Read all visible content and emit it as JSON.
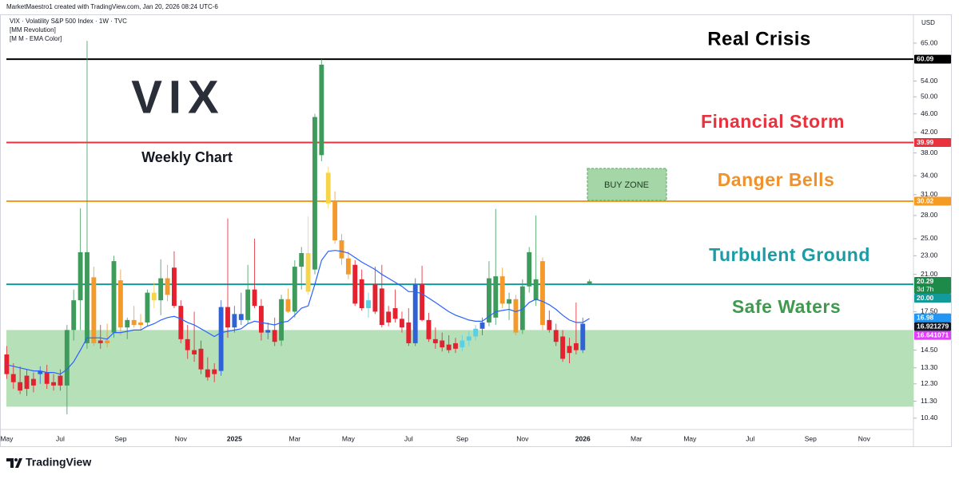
{
  "chart_data": {
    "type": "candlestick",
    "attribution": "MarketMaestro1 created with TradingView.com, Jan 20, 2026 08:24 UTC-6",
    "title": "VIX · Volatility S&P 500 Index · 1W · TVC",
    "indicators": [
      "[MM Revolution]",
      "[M M - EMA Color]"
    ],
    "currency": "USD",
    "watermark": "VIX",
    "subtitle": "Weekly Chart",
    "buy_zone": "BUY ZONE",
    "brand": "TradingView",
    "log_scale": true,
    "grid": false,
    "ylim": [
      9.84,
      74.8
    ],
    "yticks": [
      {
        "value": 65,
        "label": "65.00"
      },
      {
        "value": 54,
        "label": "54.00"
      },
      {
        "value": 50,
        "label": "50.00"
      },
      {
        "value": 46,
        "label": "46.00"
      },
      {
        "value": 42,
        "label": "42.00"
      },
      {
        "value": 38,
        "label": "38.00"
      },
      {
        "value": 34,
        "label": "34.00"
      },
      {
        "value": 31,
        "label": "31.00"
      },
      {
        "value": 28,
        "label": "28.00"
      },
      {
        "value": 25,
        "label": "25.00"
      },
      {
        "value": 23,
        "label": "23.00"
      },
      {
        "value": 21,
        "label": "21.00"
      },
      {
        "value": 17.5,
        "label": "17.50"
      },
      {
        "value": 14.5,
        "label": "14.50"
      },
      {
        "value": 13.3,
        "label": "13.30"
      },
      {
        "value": 12.3,
        "label": "12.30"
      },
      {
        "value": 11.3,
        "label": "11.30"
      },
      {
        "value": 10.4,
        "label": "10.40"
      }
    ],
    "xlim": [
      -1,
      135
    ],
    "xticks": [
      {
        "value": 0,
        "label": "May"
      },
      {
        "value": 8,
        "label": "Jul"
      },
      {
        "value": 17,
        "label": "Sep"
      },
      {
        "value": 26,
        "label": "Nov"
      },
      {
        "value": 34,
        "label": "2025"
      },
      {
        "value": 43,
        "label": "Mar"
      },
      {
        "value": 51,
        "label": "May"
      },
      {
        "value": 60,
        "label": "Jul"
      },
      {
        "value": 68,
        "label": "Sep"
      },
      {
        "value": 77,
        "label": "Nov"
      },
      {
        "value": 86,
        "label": "2026"
      },
      {
        "value": 94,
        "label": "Mar"
      },
      {
        "value": 102,
        "label": "May"
      },
      {
        "value": 111,
        "label": "Jul"
      },
      {
        "value": 120,
        "label": "Sep"
      },
      {
        "value": 128,
        "label": "Nov"
      }
    ],
    "candles": [
      [
        14.2,
        14.8,
        12.6,
        12.9
      ],
      [
        12.9,
        13.6,
        12.0,
        12.4
      ],
      [
        12.4,
        13.4,
        11.7,
        11.9
      ],
      [
        12.8,
        13.2,
        11.6,
        12.0
      ],
      [
        12.6,
        13.0,
        11.8,
        12.2
      ],
      [
        12.9,
        13.4,
        12.3,
        13.1
      ],
      [
        13.0,
        13.5,
        12.0,
        12.3
      ],
      [
        12.4,
        12.9,
        11.9,
        12.2
      ],
      [
        12.8,
        13.2,
        11.9,
        12.2
      ],
      [
        12.2,
        16.4,
        10.6,
        16.0
      ],
      [
        16.0,
        19.5,
        15.2,
        18.5
      ],
      [
        18.5,
        29.0,
        16.0,
        23.4
      ],
      [
        15.0,
        65.7,
        14.6,
        23.4
      ],
      [
        20.7,
        21.8,
        14.8,
        15.0
      ],
      [
        15.0,
        16.4,
        14.6,
        15.2
      ],
      [
        15.2,
        16.5,
        14.7,
        15.0
      ],
      [
        15.8,
        23.0,
        15.4,
        22.4
      ],
      [
        20.4,
        21.5,
        15.6,
        16.2
      ],
      [
        16.2,
        17.0,
        15.3,
        16.8
      ],
      [
        16.8,
        18.0,
        16.2,
        16.4
      ],
      [
        16.4,
        17.3,
        16.0,
        16.6
      ],
      [
        16.6,
        19.5,
        16.3,
        19.2
      ],
      [
        19.2,
        20.2,
        17.8,
        18.5
      ],
      [
        18.5,
        22.6,
        17.2,
        20.6
      ],
      [
        20.6,
        22.0,
        18.4,
        19.0
      ],
      [
        21.7,
        23.5,
        17.8,
        18.0
      ],
      [
        18.0,
        18.5,
        15.0,
        15.3
      ],
      [
        15.3,
        16.4,
        13.9,
        14.5
      ],
      [
        14.5,
        17.5,
        13.7,
        14.2
      ],
      [
        14.6,
        15.2,
        12.9,
        13.2
      ],
      [
        13.2,
        14.0,
        12.5,
        12.7
      ],
      [
        13.2,
        13.6,
        12.4,
        12.9
      ],
      [
        13.1,
        18.5,
        12.8,
        17.9
      ],
      [
        17.9,
        27.6,
        15.4,
        16.2
      ],
      [
        16.2,
        18.0,
        15.8,
        17.3
      ],
      [
        17.3,
        19.2,
        16.4,
        16.8
      ],
      [
        16.8,
        22.0,
        16.5,
        19.5
      ],
      [
        19.5,
        25.0,
        17.8,
        18.0
      ],
      [
        18.0,
        18.6,
        15.2,
        15.8
      ],
      [
        15.8,
        16.6,
        15.3,
        16.0
      ],
      [
        16.0,
        17.0,
        14.8,
        15.1
      ],
      [
        15.2,
        19.0,
        14.8,
        18.6
      ],
      [
        18.6,
        19.6,
        17.4,
        17.5
      ],
      [
        17.5,
        22.5,
        17.0,
        21.8
      ],
      [
        21.8,
        24.0,
        19.5,
        23.3
      ],
      [
        23.3,
        27.9,
        19.0,
        19.3
      ],
      [
        21.5,
        46.0,
        21.0,
        45.3
      ],
      [
        37.6,
        60.1,
        36.5,
        58.5
      ],
      [
        34.5,
        35.5,
        29.0,
        29.7
      ],
      [
        30.0,
        31.5,
        24.4,
        24.8
      ],
      [
        24.8,
        25.6,
        22.0,
        22.7
      ],
      [
        22.7,
        23.5,
        20.5,
        21.0
      ],
      [
        22.0,
        22.5,
        18.0,
        18.2
      ],
      [
        20.5,
        21.5,
        17.6,
        17.8
      ],
      [
        17.8,
        19.2,
        17.0,
        18.5
      ],
      [
        20.0,
        21.8,
        17.3,
        17.5
      ],
      [
        19.6,
        22.0,
        16.2,
        16.4
      ],
      [
        17.5,
        18.0,
        16.3,
        16.6
      ],
      [
        17.8,
        19.5,
        16.6,
        16.9
      ],
      [
        16.9,
        17.5,
        15.8,
        16.2
      ],
      [
        16.6,
        17.8,
        14.8,
        15.0
      ],
      [
        15.0,
        20.6,
        14.8,
        20.0
      ],
      [
        20.0,
        21.9,
        16.7,
        16.8
      ],
      [
        16.8,
        17.4,
        15.1,
        15.3
      ],
      [
        15.3,
        16.2,
        14.6,
        15.0
      ],
      [
        15.2,
        15.8,
        14.4,
        14.7
      ],
      [
        14.9,
        15.6,
        14.3,
        14.5
      ],
      [
        15.0,
        15.4,
        14.3,
        14.6
      ],
      [
        14.7,
        15.6,
        14.4,
        15.2
      ],
      [
        15.2,
        15.9,
        14.8,
        15.5
      ],
      [
        15.5,
        16.4,
        15.2,
        16.1
      ],
      [
        16.1,
        17.0,
        15.6,
        16.6
      ],
      [
        16.6,
        22.4,
        16.3,
        20.6
      ],
      [
        17.0,
        28.9,
        16.4,
        20.8
      ],
      [
        20.8,
        21.7,
        17.8,
        18.2
      ],
      [
        18.2,
        19.2,
        16.8,
        18.6
      ],
      [
        18.6,
        19.0,
        15.6,
        15.8
      ],
      [
        16.0,
        20.5,
        15.7,
        19.8
      ],
      [
        19.8,
        24.0,
        19.2,
        23.4
      ],
      [
        18.5,
        28.0,
        18.0,
        20.5
      ],
      [
        22.4,
        22.8,
        16.0,
        16.4
      ],
      [
        16.8,
        17.6,
        15.8,
        16.0
      ],
      [
        16.0,
        16.5,
        14.8,
        15.1
      ],
      [
        15.5,
        16.0,
        13.7,
        13.9
      ],
      [
        14.8,
        15.4,
        13.6,
        14.3
      ],
      [
        15.0,
        18.3,
        14.2,
        14.5
      ],
      [
        14.5,
        17.0,
        14.3,
        16.5
      ],
      [
        20.0,
        20.5,
        19.9,
        20.29
      ]
    ],
    "candle_colors": [
      "#e3212f",
      "#e3212f",
      "#e3212f",
      "#e3212f",
      "#e3212f",
      "#2f62d8",
      "#e3212f",
      "#e3212f",
      "#e3212f",
      "#3e9b5b",
      "#3e9b5b",
      "#3e9b5b",
      "#3e9b5b",
      "#f39a2b",
      "#e3212f",
      "#f39a2b",
      "#3e9b5b",
      "#f39a2b",
      "#3e9b5b",
      "#f39a2b",
      "#f39a2b",
      "#3e9b5b",
      "#f7d54b",
      "#3e9b5b",
      "#f39a2b",
      "#e3212f",
      "#e3212f",
      "#e3212f",
      "#e3212f",
      "#e3212f",
      "#e3212f",
      "#e3212f",
      "#2f62d8",
      "#e3212f",
      "#2f62d8",
      "#2f62d8",
      "#3e9b5b",
      "#e3212f",
      "#e3212f",
      "#2f62d8",
      "#e3212f",
      "#3e9b5b",
      "#f39a2b",
      "#3e9b5b",
      "#3e9b5b",
      "#f7d54b",
      "#3e9b5b",
      "#3e9b5b",
      "#f7d54b",
      "#f39a2b",
      "#f39a2b",
      "#f39a2b",
      "#e3212f",
      "#e3212f",
      "#5bd0e2",
      "#e3212f",
      "#e3212f",
      "#e3212f",
      "#e3212f",
      "#e3212f",
      "#e3212f",
      "#2f62d8",
      "#e3212f",
      "#e3212f",
      "#e3212f",
      "#e3212f",
      "#e3212f",
      "#e3212f",
      "#5bd0e2",
      "#5bd0e2",
      "#5bd0e2",
      "#2f62d8",
      "#3e9b5b",
      "#3e9b5b",
      "#f39a2b",
      "#3e9b5b",
      "#f39a2b",
      "#3e9b5b",
      "#3e9b5b",
      "#3e9b5b",
      "#f39a2b",
      "#e3212f",
      "#e3212f",
      "#e3212f",
      "#e3212f",
      "#e3212f",
      "#2f62d8",
      "#3e9b5b"
    ],
    "ema": {
      "color": "#2962ff",
      "values": [
        13.5,
        13.4,
        13.3,
        13.2,
        13.1,
        13.1,
        13.0,
        13.0,
        12.9,
        13.2,
        13.7,
        14.5,
        15.4,
        15.4,
        15.4,
        15.3,
        15.8,
        15.8,
        15.9,
        16.0,
        16.0,
        16.3,
        16.5,
        16.8,
        17.0,
        17.1,
        16.9,
        16.6,
        16.4,
        16.1,
        15.8,
        15.5,
        15.8,
        15.9,
        16.0,
        16.1,
        16.5,
        16.7,
        16.6,
        16.5,
        16.4,
        16.6,
        16.7,
        17.2,
        17.8,
        18.0,
        20.0,
        22.5,
        23.5,
        23.6,
        23.5,
        23.3,
        22.8,
        22.3,
        21.9,
        21.5,
        21.0,
        20.6,
        20.2,
        19.8,
        19.3,
        19.3,
        19.1,
        18.7,
        18.3,
        17.9,
        17.5,
        17.2,
        17.0,
        16.8,
        16.7,
        16.7,
        17.1,
        17.5,
        17.6,
        17.7,
        17.5,
        17.7,
        18.3,
        18.6,
        18.4,
        18.1,
        17.7,
        17.2,
        16.8,
        16.6,
        16.6,
        16.921279
      ]
    },
    "zone": {
      "from": 11.0,
      "to": 16.0,
      "color": "#b5e0b8"
    },
    "levels": [
      {
        "value": 60.09,
        "color": "#000000"
      },
      {
        "value": 39.99,
        "color": "#e8333f"
      },
      {
        "value": 30.02,
        "color": "#f59a23"
      },
      {
        "value": 20,
        "label": "20.00",
        "color": "#139a9a"
      }
    ],
    "markers": [
      {
        "value": 20.29,
        "color": "#1e8a4a"
      },
      {
        "value": 16.98,
        "color": "#2196f3"
      },
      {
        "value": 16.921279,
        "color": "#131722"
      },
      {
        "value": 16.641071,
        "color": "#e040fb"
      }
    ],
    "countdown": "3d 7h",
    "annotations": [
      {
        "text": "Real Crisis",
        "color": "#000000"
      },
      {
        "text": "Financial Storm",
        "color": "#e8333f"
      },
      {
        "text": "Danger Bells",
        "color": "#f0912b"
      },
      {
        "text": "Turbulent Ground",
        "color": "#1a9ba5"
      },
      {
        "text": "Safe Waters",
        "color": "#3f9a4f"
      }
    ]
  }
}
